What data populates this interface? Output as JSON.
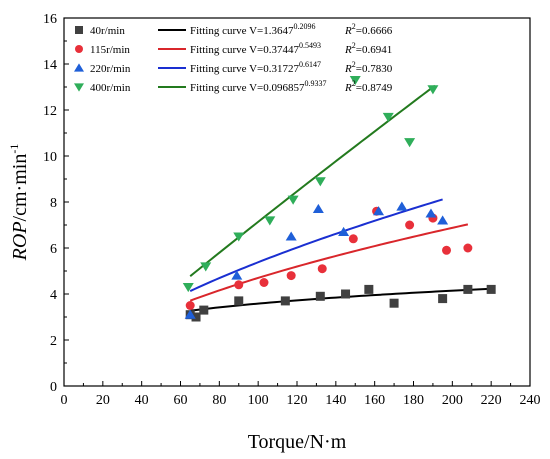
{
  "chart_data": {
    "type": "scatter",
    "xlabel": "Torque/N·m",
    "ylabel_italic": "ROP",
    "ylabel_rest": "/cm·min",
    "ylabel_sup": "-1",
    "xlim": [
      0,
      240
    ],
    "ylim": [
      0,
      16
    ],
    "xticks": [
      0,
      20,
      40,
      60,
      80,
      100,
      120,
      140,
      160,
      180,
      200,
      220,
      240
    ],
    "yticks": [
      0,
      2,
      4,
      6,
      8,
      10,
      12,
      14,
      16
    ],
    "grid": false,
    "legend_placement": "top-left",
    "series": [
      {
        "name": "40r/min",
        "marker": "square",
        "color": "#404040",
        "fit_color": "#000000",
        "fit_label_prefix": "Fitting curve ",
        "fit_label": "V=1.3647",
        "fit_exp": "0.2096",
        "r2_label": "R",
        "r2_value": "=0.6666",
        "fit_coef": 1.3647,
        "fit_power": 0.2096,
        "fit_range": [
          65,
          220
        ],
        "points": [
          [
            65,
            3.1
          ],
          [
            68,
            3.0
          ],
          [
            72,
            3.3
          ],
          [
            90,
            3.7
          ],
          [
            114,
            3.7
          ],
          [
            132,
            3.9
          ],
          [
            145,
            4.0
          ],
          [
            157,
            4.2
          ],
          [
            170,
            3.6
          ],
          [
            195,
            3.8
          ],
          [
            208,
            4.2
          ],
          [
            220,
            4.2
          ]
        ]
      },
      {
        "name": "115r/min",
        "marker": "circle",
        "color": "#e8303a",
        "fit_color": "#d9262b",
        "fit_label_prefix": "Fitting curve ",
        "fit_label": "V=0.37447",
        "fit_exp": "0.5493",
        "r2_label": "R",
        "r2_value": "=0.6941",
        "fit_coef": 0.37447,
        "fit_power": 0.5493,
        "fit_range": [
          65,
          208
        ],
        "points": [
          [
            65,
            3.5
          ],
          [
            90,
            4.4
          ],
          [
            103,
            4.5
          ],
          [
            117,
            4.8
          ],
          [
            133,
            5.1
          ],
          [
            149,
            6.4
          ],
          [
            161,
            7.6
          ],
          [
            178,
            7.0
          ],
          [
            190,
            7.3
          ],
          [
            197,
            5.9
          ],
          [
            208,
            6.0
          ]
        ]
      },
      {
        "name": "220r/min",
        "marker": "triangle-up",
        "color": "#1f5fd8",
        "fit_color": "#1a2fd1",
        "fit_label_prefix": "Fitting curve ",
        "fit_label": "V=0.31727",
        "fit_exp": "0.6147",
        "r2_label": "R",
        "r2_value": "=0.7830",
        "fit_coef": 0.31727,
        "fit_power": 0.6147,
        "fit_range": [
          65,
          195
        ],
        "points": [
          [
            65,
            3.1
          ],
          [
            89,
            4.8
          ],
          [
            117,
            6.5
          ],
          [
            131,
            7.7
          ],
          [
            144,
            6.7
          ],
          [
            162,
            7.6
          ],
          [
            174,
            7.8
          ],
          [
            189,
            7.5
          ],
          [
            195,
            7.2
          ]
        ]
      },
      {
        "name": "400r/min",
        "marker": "triangle-down",
        "color": "#2fae5a",
        "fit_color": "#237a1e",
        "fit_label_prefix": "Fitting curve ",
        "fit_label": "V=0.096857",
        "fit_exp": "0.9337",
        "r2_label": "R",
        "r2_value": "=0.8749",
        "fit_coef": 0.096857,
        "fit_power": 0.9337,
        "fit_range": [
          65,
          191
        ],
        "points": [
          [
            64,
            4.3
          ],
          [
            73,
            5.2
          ],
          [
            90,
            6.5
          ],
          [
            106,
            7.2
          ],
          [
            118,
            8.1
          ],
          [
            132,
            8.9
          ],
          [
            150,
            13.3
          ],
          [
            167,
            11.7
          ],
          [
            178,
            10.6
          ],
          [
            190,
            12.9
          ]
        ]
      }
    ]
  }
}
